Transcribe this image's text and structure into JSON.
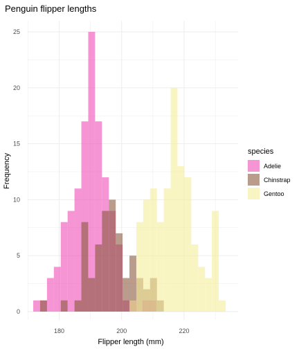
{
  "chart_data": {
    "type": "histogram",
    "title": "Penguin flipper lengths",
    "xlabel": "Flipper length (mm)",
    "ylabel": "Frequency",
    "xlim": [
      170,
      235
    ],
    "ylim": [
      0,
      26
    ],
    "x_ticks": [
      180,
      200,
      220
    ],
    "y_ticks": [
      0,
      5,
      10,
      15,
      20,
      25
    ],
    "grid": true,
    "legend": {
      "title": "species",
      "position": "right"
    },
    "bin_width": 2.2,
    "series": [
      {
        "name": "Adelie",
        "color": "#ee4eb5",
        "bins": [
          [
            172.8,
            1
          ],
          [
            175.0,
            1
          ],
          [
            177.2,
            3
          ],
          [
            179.4,
            4
          ],
          [
            181.6,
            8
          ],
          [
            183.8,
            9
          ],
          [
            186.0,
            11
          ],
          [
            188.2,
            17
          ],
          [
            190.4,
            25
          ],
          [
            192.6,
            17
          ],
          [
            194.8,
            12
          ],
          [
            197.0,
            9
          ],
          [
            199.2,
            6
          ],
          [
            201.4,
            1
          ],
          [
            203.6,
            1
          ],
          [
            207.8,
            1
          ],
          [
            210.0,
            1
          ]
        ]
      },
      {
        "name": "Chinstrap",
        "color": "#8b5a40",
        "bins": [
          [
            175.0,
            1
          ],
          [
            181.6,
            1
          ],
          [
            186.0,
            1
          ],
          [
            188.2,
            8
          ],
          [
            190.4,
            3
          ],
          [
            192.6,
            6
          ],
          [
            194.8,
            9
          ],
          [
            197.0,
            10
          ],
          [
            199.2,
            7
          ],
          [
            201.4,
            3
          ],
          [
            203.6,
            5
          ],
          [
            205.8,
            3
          ],
          [
            208.0,
            2
          ],
          [
            210.2,
            3
          ],
          [
            212.4,
            1
          ]
        ]
      },
      {
        "name": "Gentoo",
        "color": "#f5ef9a",
        "bins": [
          [
            203.6,
            1
          ],
          [
            205.8,
            8
          ],
          [
            208.0,
            10
          ],
          [
            210.2,
            11
          ],
          [
            212.4,
            8
          ],
          [
            214.6,
            11
          ],
          [
            216.8,
            20
          ],
          [
            219.0,
            13
          ],
          [
            221.2,
            12
          ],
          [
            223.4,
            6
          ],
          [
            225.6,
            4
          ],
          [
            227.8,
            3
          ],
          [
            230.0,
            9
          ],
          [
            232.2,
            1
          ]
        ]
      }
    ]
  }
}
